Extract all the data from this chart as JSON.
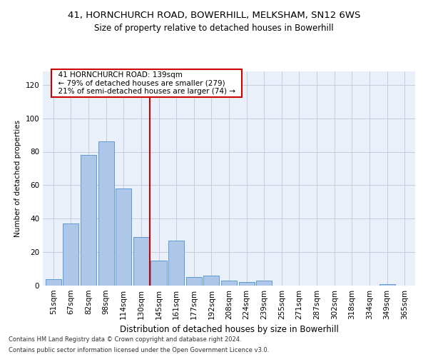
{
  "title1": "41, HORNCHURCH ROAD, BOWERHILL, MELKSHAM, SN12 6WS",
  "title2": "Size of property relative to detached houses in Bowerhill",
  "xlabel": "Distribution of detached houses by size in Bowerhill",
  "ylabel": "Number of detached properties",
  "categories": [
    "51sqm",
    "67sqm",
    "82sqm",
    "98sqm",
    "114sqm",
    "130sqm",
    "145sqm",
    "161sqm",
    "177sqm",
    "192sqm",
    "208sqm",
    "224sqm",
    "239sqm",
    "255sqm",
    "271sqm",
    "287sqm",
    "302sqm",
    "318sqm",
    "334sqm",
    "349sqm",
    "365sqm"
  ],
  "values": [
    4,
    37,
    78,
    86,
    58,
    29,
    15,
    27,
    5,
    6,
    3,
    2,
    3,
    0,
    0,
    0,
    0,
    0,
    0,
    1,
    0
  ],
  "bar_color": "#aec6e8",
  "bar_edgecolor": "#5b9bd5",
  "vline_x": 5.5,
  "vline_color": "#cc0000",
  "annotation_text": "  41 HORNCHURCH ROAD: 139sqm  \n  ← 79% of detached houses are smaller (279)  \n  21% of semi-detached houses are larger (74) →  ",
  "annotation_box_color": "#ffffff",
  "annotation_box_edgecolor": "#cc0000",
  "ylim": [
    0,
    128
  ],
  "yticks": [
    0,
    20,
    40,
    60,
    80,
    100,
    120
  ],
  "footer1": "Contains HM Land Registry data © Crown copyright and database right 2024.",
  "footer2": "Contains public sector information licensed under the Open Government Licence v3.0.",
  "bg_color": "#eaf0f9",
  "title1_fontsize": 9.5,
  "title2_fontsize": 8.5,
  "xlabel_fontsize": 8.5,
  "ylabel_fontsize": 7.5,
  "tick_fontsize": 7.5,
  "footer_fontsize": 6.0,
  "annotation_fontsize": 7.5
}
